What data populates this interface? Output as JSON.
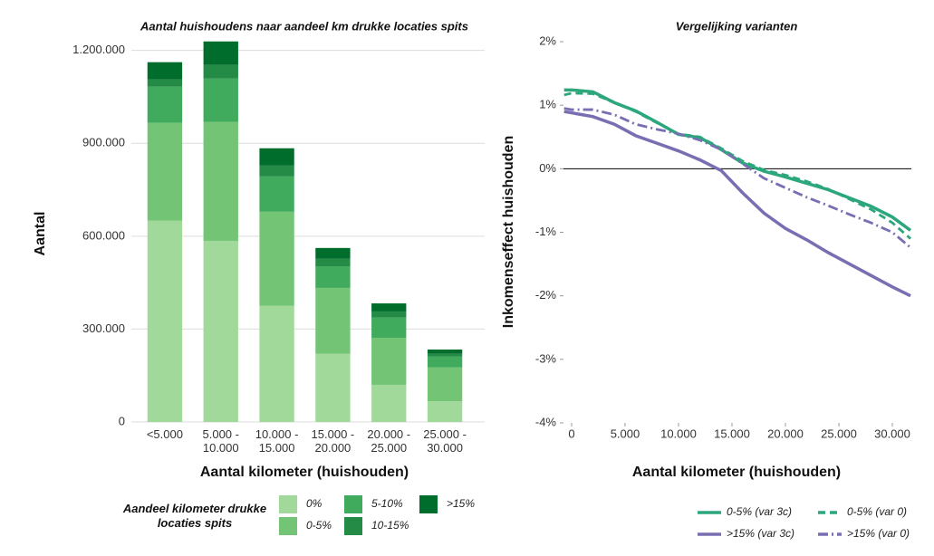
{
  "chart_data": [
    {
      "type": "bar",
      "stacked": true,
      "title": "Aantal huishoudens naar aandeel km drukke locaties spits",
      "ylabel": "Aantal",
      "xlabel": "Aantal kilometer (huishouden)",
      "legend_title": "Aandeel kilometer drukke locaties spits",
      "categories": [
        "<5.000",
        "5.000 - 10.000",
        "10.000 - 15.000",
        "15.000 - 20.000",
        "20.000 - 25.000",
        "25.000 - 30.000"
      ],
      "series": [
        {
          "name": "0%",
          "color": "#a1d99b",
          "values": [
            650000,
            585000,
            375000,
            220000,
            120000,
            67000
          ]
        },
        {
          "name": "0-5%",
          "color": "#74c476",
          "values": [
            316000,
            384000,
            304000,
            213000,
            152000,
            109000
          ]
        },
        {
          "name": "5-10%",
          "color": "#41ab5d",
          "values": [
            117000,
            140000,
            114000,
            70000,
            65000,
            35000
          ]
        },
        {
          "name": "10-15%",
          "color": "#238b45",
          "values": [
            23000,
            44000,
            35000,
            24000,
            20000,
            9000
          ]
        },
        {
          "name": ">15%",
          "color": "#006d2c",
          "values": [
            56000,
            76000,
            56000,
            35000,
            26000,
            14000
          ]
        }
      ],
      "ylim": [
        0,
        1240000
      ],
      "yticks": [
        0,
        {
          "value": 300000,
          "label": "300.000"
        },
        {
          "value": 600000,
          "label": "600.000"
        },
        {
          "value": 900000,
          "label": "900.000"
        },
        {
          "value": 1200000,
          "label": "1.200.000"
        }
      ],
      "grid": true
    },
    {
      "type": "line",
      "title": "Vergelijking varianten",
      "ylabel": "Inkomenseffect huishouden",
      "xlabel": "Aantal kilometer (huishouden)",
      "x": [
        -700,
        0,
        2000,
        4000,
        6000,
        8000,
        10000,
        12000,
        14000,
        16000,
        18000,
        20000,
        22000,
        24000,
        26000,
        28000,
        30000,
        31700
      ],
      "series": [
        {
          "name": "0-5% (var 3c)",
          "color": "#2ca77c",
          "dash": "solid",
          "values": [
            1.24,
            1.24,
            1.21,
            1.04,
            0.91,
            0.73,
            0.54,
            0.49,
            0.3,
            0.09,
            -0.04,
            -0.13,
            -0.23,
            -0.33,
            -0.46,
            -0.59,
            -0.76,
            -0.97
          ]
        },
        {
          "name": "0-5% (var 0)",
          "color": "#2ca77c",
          "dash": "dashed",
          "values": [
            1.16,
            1.19,
            1.18,
            1.04,
            0.9,
            0.72,
            0.55,
            0.5,
            0.32,
            0.12,
            -0.02,
            -0.1,
            -0.2,
            -0.32,
            -0.48,
            -0.64,
            -0.85,
            -1.1
          ]
        },
        {
          "name": ">15% (var 3c)",
          "color": "#7a6eb2",
          "dash": "solid",
          "values": [
            0.9,
            0.88,
            0.82,
            0.7,
            0.52,
            0.4,
            0.28,
            0.14,
            -0.03,
            -0.38,
            -0.7,
            -0.94,
            -1.12,
            -1.32,
            -1.5,
            -1.68,
            -1.86,
            -2.0
          ]
        },
        {
          "name": ">15% (var 0)",
          "color": "#7a6eb2",
          "dash": "dashdot",
          "values": [
            0.95,
            0.93,
            0.93,
            0.85,
            0.7,
            0.62,
            0.55,
            0.45,
            0.3,
            0.08,
            -0.15,
            -0.3,
            -0.45,
            -0.58,
            -0.72,
            -0.85,
            -1.0,
            -1.24
          ]
        }
      ],
      "xlim": [
        -760,
        31780
      ],
      "xticks": [
        0,
        {
          "value": 5000,
          "label": "5.000"
        },
        {
          "value": 10000,
          "label": "10.000"
        },
        {
          "value": 15000,
          "label": "15.000"
        },
        {
          "value": 20000,
          "label": "20.000"
        },
        {
          "value": 25000,
          "label": "25.000"
        },
        {
          "value": 30000,
          "label": "30.000"
        }
      ],
      "ylim": [
        -4,
        2
      ],
      "yticks": [
        {
          "value": -4,
          "label": "-4%"
        },
        {
          "value": -3,
          "label": "-3%"
        },
        {
          "value": -2,
          "label": "-2%"
        },
        {
          "value": -1,
          "label": "-1%"
        },
        {
          "value": 0,
          "label": "0%"
        },
        {
          "value": 1,
          "label": "1%"
        },
        {
          "value": 2,
          "label": "2%"
        }
      ],
      "zero_line": true,
      "grid": false
    }
  ]
}
